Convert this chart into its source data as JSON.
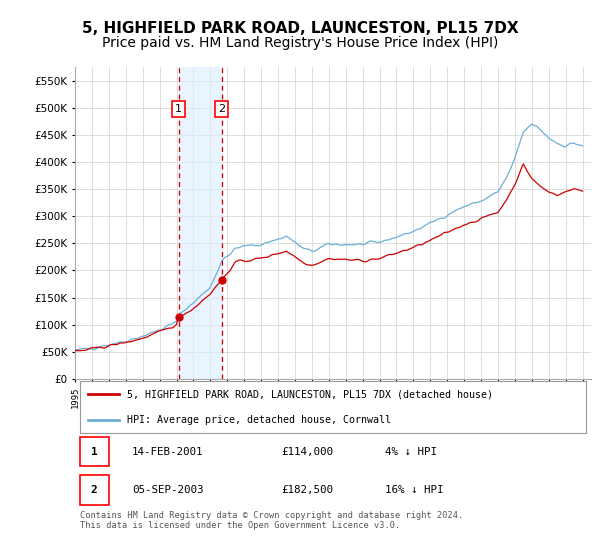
{
  "title": "5, HIGHFIELD PARK ROAD, LAUNCESTON, PL15 7DX",
  "subtitle": "Price paid vs. HM Land Registry's House Price Index (HPI)",
  "legend_line1": "5, HIGHFIELD PARK ROAD, LAUNCESTON, PL15 7DX (detached house)",
  "legend_line2": "HPI: Average price, detached house, Cornwall",
  "footer": "Contains HM Land Registry data © Crown copyright and database right 2024.\nThis data is licensed under the Open Government Licence v3.0.",
  "transactions": [
    {
      "label": "1",
      "date": "14-FEB-2001",
      "price": 114000,
      "relation": "4% ↓ HPI",
      "year": 2001.12
    },
    {
      "label": "2",
      "date": "05-SEP-2003",
      "price": 182500,
      "relation": "16% ↓ HPI",
      "year": 2003.67
    }
  ],
  "hpi_color": "#6baed6",
  "price_color": "#cc0000",
  "shade_color": "#ddeeff",
  "background_color": "#ffffff",
  "grid_color": "#dddddd",
  "ylim": [
    0,
    575000
  ],
  "yticks": [
    0,
    50000,
    100000,
    150000,
    200000,
    250000,
    300000,
    350000,
    400000,
    450000,
    500000,
    550000
  ],
  "xmin": 1995.0,
  "xmax": 2025.5,
  "title_fontsize": 11,
  "subtitle_fontsize": 10
}
